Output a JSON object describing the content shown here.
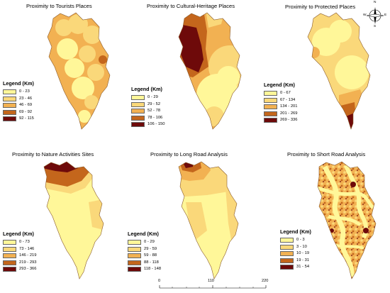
{
  "palette": {
    "c0": "#fff799",
    "c1": "#fad87a",
    "c2": "#f2b152",
    "c3": "#c4661c",
    "c4": "#6e0a0a",
    "outline": "#8a5a2a"
  },
  "legend_title": "Legend (Km)",
  "panels": [
    {
      "title": "Proximity to Tourists Places",
      "legend": [
        "0 - 23",
        "23 - 46",
        "46 - 69",
        "69 - 92",
        "92 - 115"
      ]
    },
    {
      "title": "Proximity to Cultural-Heritage Places",
      "legend": [
        "0 - 29",
        "29 - 52",
        "52 - 78",
        "78 - 106",
        "106 - 150"
      ]
    },
    {
      "title": "Proximity to Protected Places",
      "legend": [
        "0 - 67",
        "67 - 134",
        "134 - 201",
        "201 - 269",
        "269 - 336"
      ]
    },
    {
      "title": "Proximity to Nature Activities Sites",
      "legend": [
        "0 - 73",
        "73 - 146",
        "146 - 219",
        "219 - 293",
        "293 - 366"
      ]
    },
    {
      "title": "Proximity to Long Road Analysis",
      "legend": [
        "0 - 29",
        "29 - 59",
        "59 - 88",
        "88 - 118",
        "118 - 148"
      ]
    },
    {
      "title": "Proximity to Short Road Analysis",
      "legend": [
        "0 - 3",
        "3 - 10",
        "10 - 19",
        "19 - 31",
        "31 - 54"
      ]
    }
  ],
  "scale": {
    "labels": [
      "0",
      "110",
      "220"
    ],
    "unit": ""
  },
  "compass": {
    "north": "N",
    "south": "S",
    "east": "E",
    "west": "W"
  }
}
